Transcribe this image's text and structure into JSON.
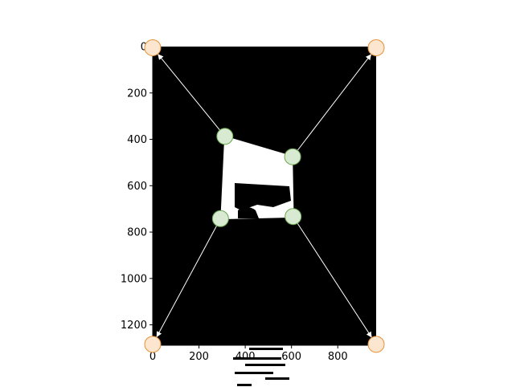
{
  "chart_data": {
    "type": "scatter",
    "title": "",
    "xlabel": "",
    "ylabel": "",
    "x_ticks": [
      0,
      200,
      400,
      600,
      800
    ],
    "y_ticks": [
      0,
      200,
      400,
      600,
      800,
      1000,
      1200
    ],
    "x_tick_labels": [
      "0",
      "200",
      "400",
      "600",
      "800"
    ],
    "y_tick_labels": [
      "0",
      "200",
      "400",
      "600",
      "800",
      "1000",
      "1200"
    ],
    "xlim": [
      0,
      966
    ],
    "ylim": [
      1288,
      0
    ],
    "y_axis_inverted": true,
    "grid": false,
    "image_background": "#000000",
    "document_quad": [
      [
        310,
        385
      ],
      [
        605,
        472
      ],
      [
        610,
        737
      ],
      [
        293,
        745
      ]
    ],
    "series": [
      {
        "role": "source corners",
        "color": "#d9ead3",
        "edge_color": "#6aa84f",
        "points": [
          {
            "x": 312,
            "y": 387
          },
          {
            "x": 605,
            "y": 475
          },
          {
            "x": 607,
            "y": 733
          },
          {
            "x": 293,
            "y": 742
          }
        ]
      },
      {
        "role": "destination corners",
        "color": "#fde6cf",
        "edge_color": "#e69138",
        "points": [
          {
            "x": 0,
            "y": 5
          },
          {
            "x": 966,
            "y": 5
          },
          {
            "x": 966,
            "y": 1284
          },
          {
            "x": 0,
            "y": 1284
          }
        ]
      }
    ],
    "arrows": [
      {
        "from": [
          312,
          387
        ],
        "to": [
          0,
          5
        ]
      },
      {
        "from": [
          605,
          475
        ],
        "to": [
          966,
          5
        ]
      },
      {
        "from": [
          607,
          733
        ],
        "to": [
          966,
          1284
        ]
      },
      {
        "from": [
          293,
          742
        ],
        "to": [
          0,
          1284
        ]
      }
    ]
  }
}
